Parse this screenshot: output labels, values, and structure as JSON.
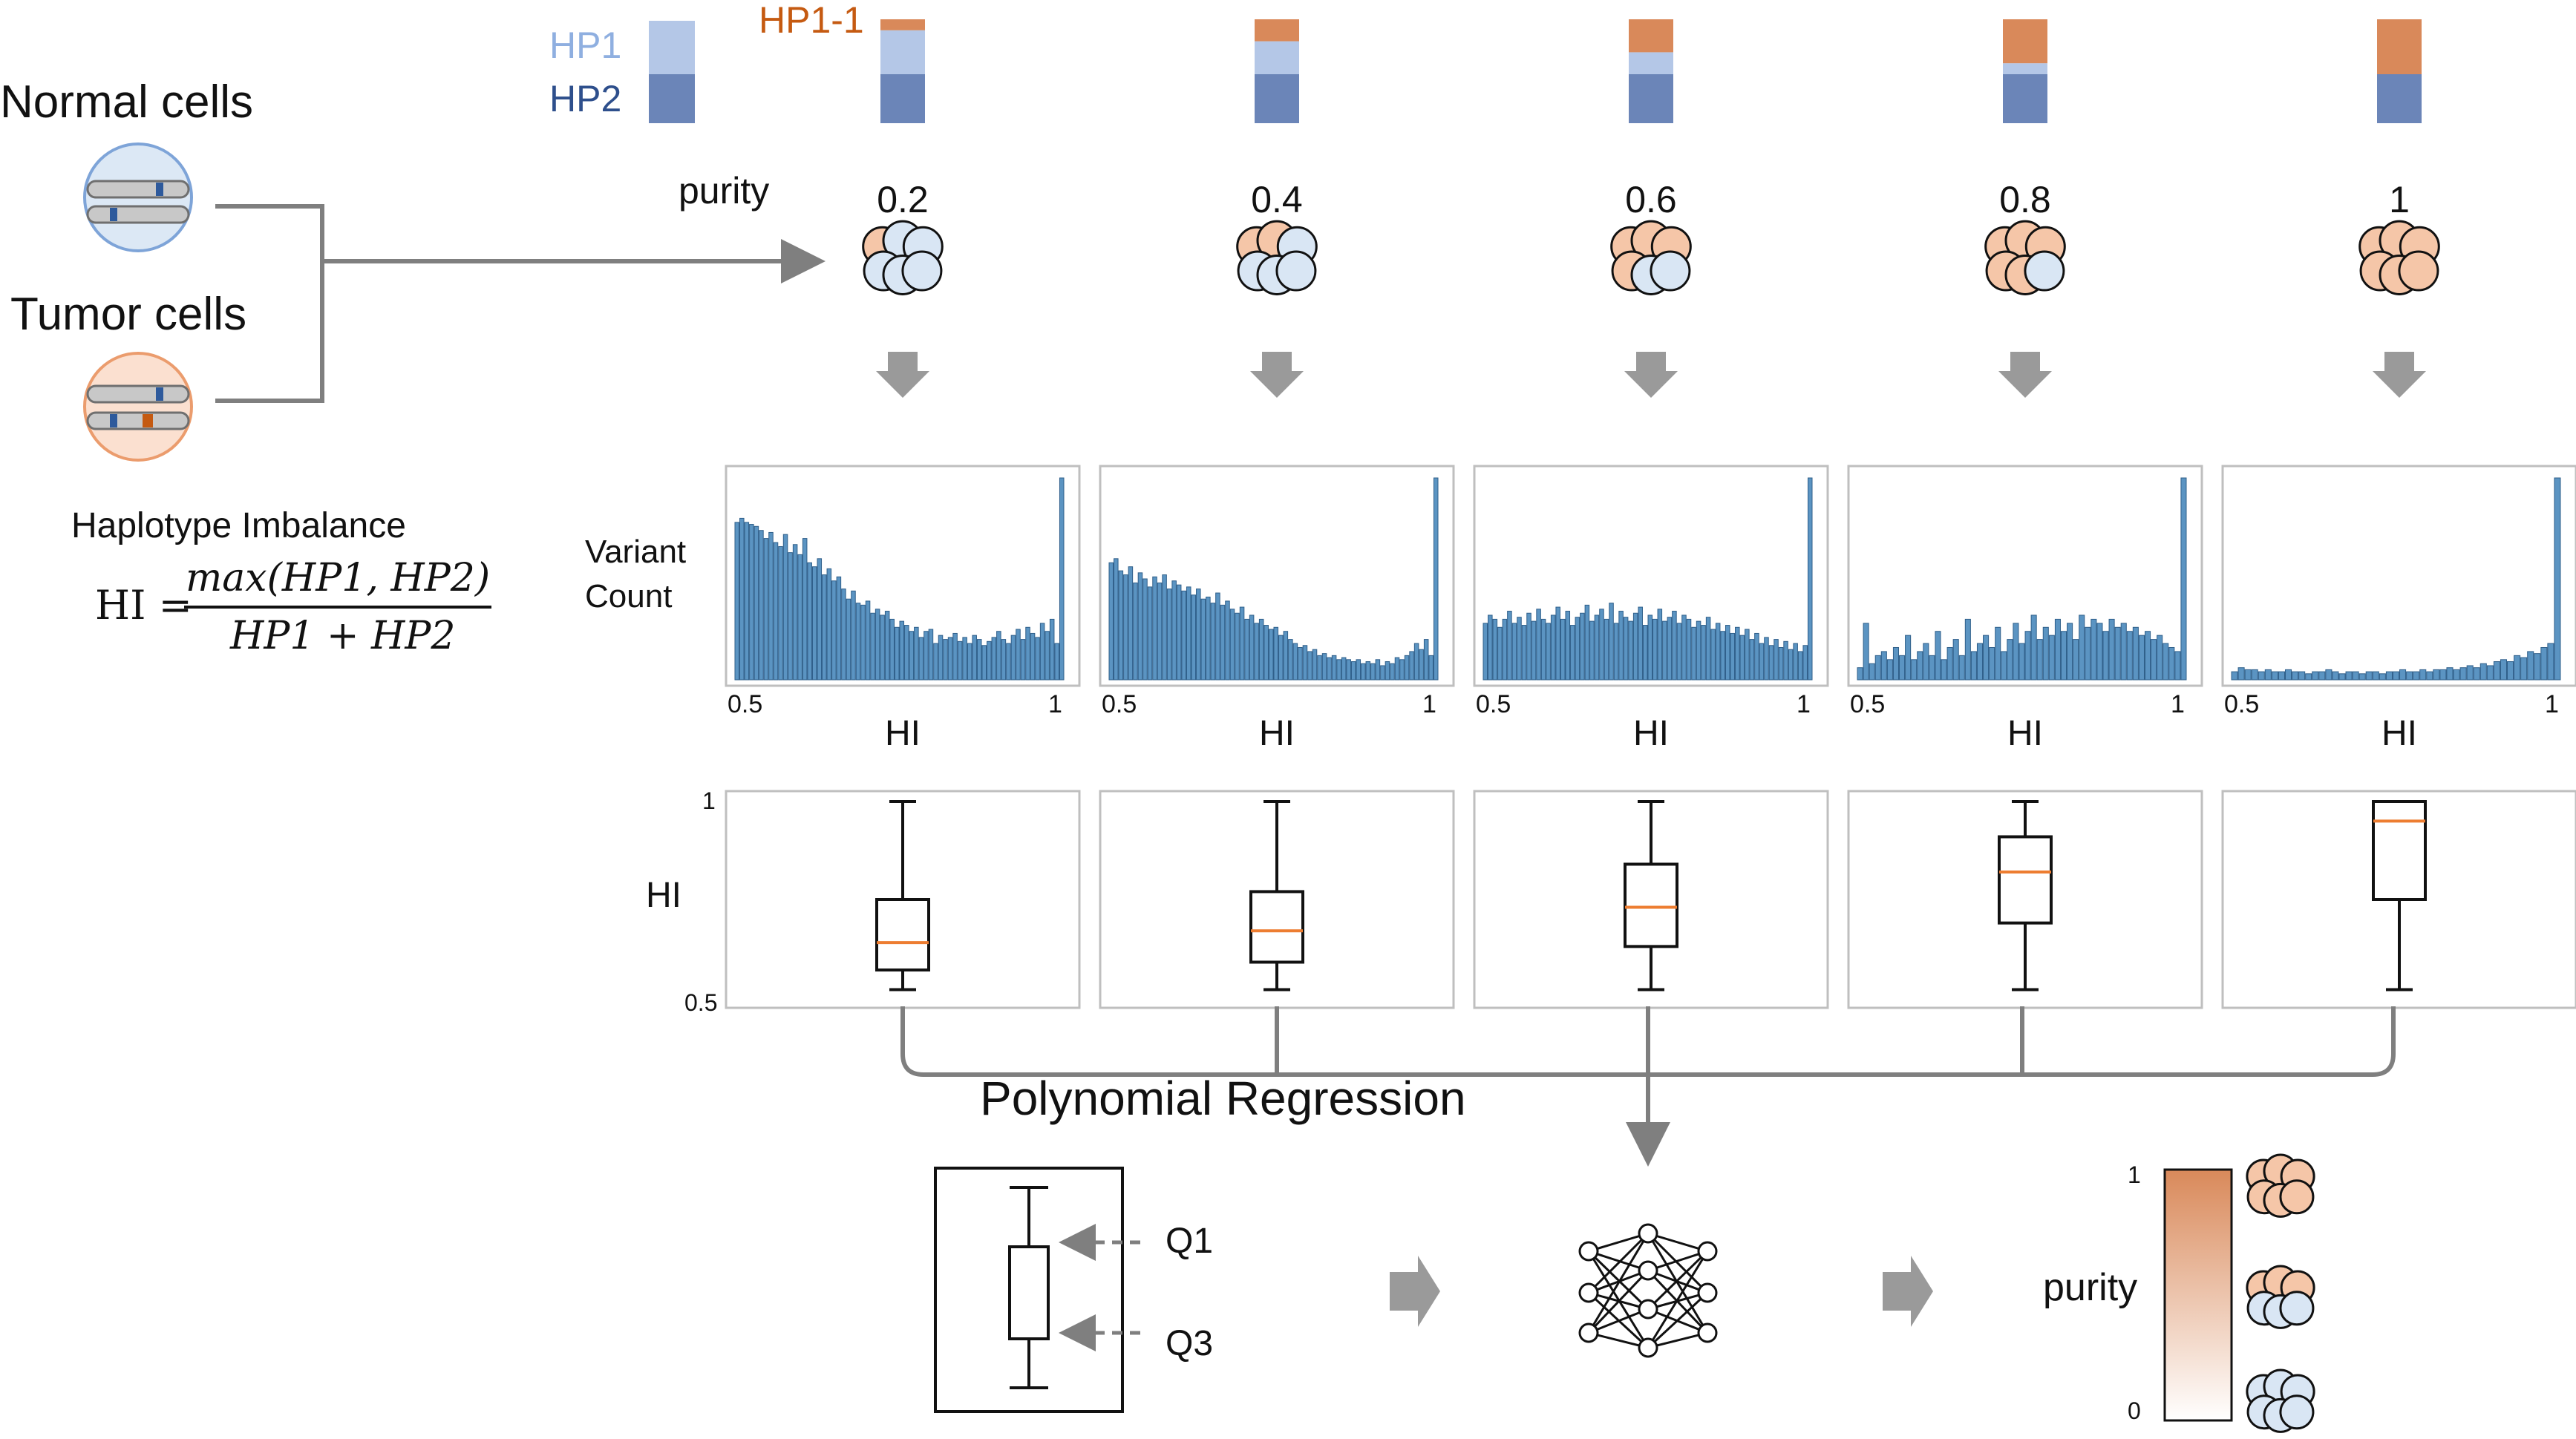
{
  "left": {
    "normal_label": "Normal cells",
    "tumor_label": "Tumor cells",
    "formula_title": "Haplotype Imbalance",
    "formula_lhs": "HI =",
    "formula_num": "max(HP1, HP2)",
    "formula_den": "HP1 + HP2"
  },
  "legend": {
    "hp1": "HP1",
    "hp2": "HP2",
    "hp11": "HP1-1"
  },
  "purity_label": "purity",
  "purities": [
    "0.2",
    "0.4",
    "0.6",
    "0.8",
    "1"
  ],
  "purity_fractions": [
    0.2,
    0.4,
    0.6,
    0.8,
    1.0
  ],
  "hist_axis": {
    "ylabel_line1": "Variant",
    "ylabel_line2": "Count",
    "xlabel": "HI",
    "x_min": "0.5",
    "x_max": "1"
  },
  "box_axis": {
    "ylabel": "HI",
    "y_top": "1",
    "y_bottom": "0.5"
  },
  "regression_label": "Polynomial Regression",
  "bottom": {
    "q1": "Q1",
    "q3": "Q3",
    "purity_label": "purity",
    "scale_top": "1",
    "scale_bottom": "0"
  },
  "colors": {
    "hp1": "#b4c7e7",
    "hp2": "#6b85b8",
    "hp11": "#d9895a",
    "hist_bar": "#5b94c2",
    "normal_cell": "#d9e6f4",
    "tumor_cell": "#f5c6a8",
    "median": "#ed7d31",
    "arrow_gray": "#9a9a9a"
  },
  "chart_data": [
    {
      "type": "bar",
      "panel": "purity 0.2",
      "x_range": [
        0.5,
        1
      ],
      "values": [
        78,
        80,
        78,
        77,
        76,
        74,
        70,
        73,
        68,
        66,
        72,
        63,
        67,
        62,
        70,
        58,
        56,
        60,
        52,
        55,
        49,
        51,
        45,
        40,
        44,
        38,
        37,
        39,
        33,
        35,
        32,
        34,
        30,
        26,
        29,
        27,
        24,
        26,
        21,
        24,
        25,
        18,
        22,
        20,
        21,
        23,
        19,
        21,
        18,
        22,
        20,
        17,
        19,
        21,
        24,
        20,
        18,
        22,
        25,
        20,
        26,
        23,
        21,
        28,
        24,
        30,
        18,
        100
      ]
    },
    {
      "type": "bar",
      "panel": "purity 0.4",
      "x_range": [
        0.5,
        1
      ],
      "values": [
        58,
        60,
        54,
        52,
        56,
        48,
        53,
        50,
        46,
        51,
        48,
        52,
        45,
        49,
        47,
        44,
        46,
        42,
        45,
        40,
        41,
        38,
        43,
        37,
        39,
        35,
        33,
        36,
        30,
        32,
        28,
        30,
        27,
        25,
        26,
        22,
        24,
        20,
        18,
        16,
        17,
        14,
        15,
        12,
        13,
        11,
        12,
        10,
        11,
        10,
        9,
        10,
        8,
        9,
        8,
        10,
        7,
        9,
        8,
        11,
        10,
        12,
        14,
        18,
        15,
        20,
        12,
        100
      ]
    },
    {
      "type": "bar",
      "panel": "purity 0.6",
      "x_range": [
        0.5,
        1
      ],
      "values": [
        28,
        32,
        30,
        26,
        30,
        34,
        28,
        31,
        27,
        33,
        29,
        35,
        30,
        28,
        32,
        36,
        30,
        34,
        27,
        31,
        33,
        37,
        29,
        32,
        35,
        30,
        38,
        28,
        34,
        31,
        29,
        33,
        36,
        27,
        32,
        30,
        35,
        29,
        31,
        34,
        28,
        32,
        30,
        26,
        29,
        27,
        31,
        25,
        28,
        24,
        27,
        23,
        26,
        22,
        25,
        20,
        23,
        18,
        21,
        17,
        20,
        16,
        19,
        15,
        18,
        14,
        17,
        100
      ]
    },
    {
      "type": "bar",
      "panel": "purity 0.8",
      "x_range": [
        0.5,
        1
      ],
      "values": [
        6,
        28,
        8,
        12,
        14,
        10,
        16,
        12,
        22,
        10,
        14,
        18,
        12,
        24,
        10,
        16,
        20,
        12,
        30,
        14,
        18,
        22,
        16,
        26,
        14,
        20,
        28,
        18,
        24,
        32,
        20,
        26,
        22,
        30,
        24,
        28,
        20,
        32,
        26,
        30,
        28,
        24,
        30,
        26,
        28,
        24,
        26,
        22,
        24,
        20,
        22,
        18,
        16,
        14,
        100
      ]
    },
    {
      "type": "bar",
      "panel": "purity 1",
      "x_range": [
        0.5,
        1
      ],
      "values": [
        4,
        6,
        5,
        5,
        4,
        5,
        4,
        4,
        5,
        4,
        4,
        3,
        4,
        4,
        5,
        4,
        3,
        4,
        4,
        3,
        4,
        4,
        3,
        4,
        4,
        5,
        4,
        4,
        5,
        4,
        5,
        5,
        6,
        5,
        6,
        7,
        6,
        8,
        7,
        9,
        10,
        9,
        12,
        11,
        14,
        13,
        16,
        18,
        100
      ]
    },
    {
      "type": "box",
      "panel": "purity 0.2",
      "y_range": [
        0.5,
        1
      ],
      "whisker_low": 0.52,
      "q1": 0.57,
      "median": 0.64,
      "q3": 0.75,
      "whisker_high": 1.0
    },
    {
      "type": "box",
      "panel": "purity 0.4",
      "y_range": [
        0.5,
        1
      ],
      "whisker_low": 0.52,
      "q1": 0.59,
      "median": 0.67,
      "q3": 0.77,
      "whisker_high": 1.0
    },
    {
      "type": "box",
      "panel": "purity 0.6",
      "y_range": [
        0.5,
        1
      ],
      "whisker_low": 0.52,
      "q1": 0.63,
      "median": 0.73,
      "q3": 0.84,
      "whisker_high": 1.0
    },
    {
      "type": "box",
      "panel": "purity 0.8",
      "y_range": [
        0.5,
        1
      ],
      "whisker_low": 0.52,
      "q1": 0.69,
      "median": 0.82,
      "q3": 0.91,
      "whisker_high": 1.0
    },
    {
      "type": "box",
      "panel": "purity 1",
      "y_range": [
        0.5,
        1
      ],
      "whisker_low": 0.52,
      "q1": 0.75,
      "median": 0.95,
      "q3": 1.0,
      "whisker_high": 1.0
    }
  ]
}
